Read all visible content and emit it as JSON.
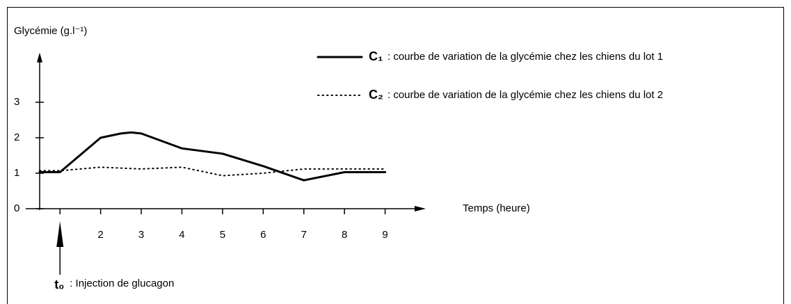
{
  "chart_data": {
    "type": "line",
    "ylabel": "Glycémie (g.l⁻¹)",
    "xlabel": "Temps (heure)",
    "xlim": [
      0.5,
      10
    ],
    "ylim": [
      0,
      4.4
    ],
    "xticks": [
      2,
      3,
      4,
      5,
      6,
      7,
      8,
      9
    ],
    "yticks": [
      0,
      1,
      2,
      3
    ],
    "series": [
      {
        "name": "C₁",
        "description": ": courbe de variation de la glycémie chez les chiens du lot 1",
        "color": "#000000",
        "style": "solid",
        "x": [
          0.5,
          1,
          2,
          2.5,
          2.75,
          3,
          4,
          5,
          6,
          7,
          8,
          9
        ],
        "values": [
          1.03,
          1.03,
          2.0,
          2.12,
          2.15,
          2.12,
          1.7,
          1.55,
          1.2,
          0.8,
          1.03,
          1.03
        ]
      },
      {
        "name": "C₂",
        "description": ": courbe de variation de la glycémie chez les chiens du lot 2",
        "color": "#000000",
        "style": "dotted",
        "x": [
          0.5,
          1,
          2,
          3,
          4,
          5,
          6,
          7,
          8,
          9
        ],
        "values": [
          1.07,
          1.07,
          1.17,
          1.12,
          1.17,
          0.93,
          1.0,
          1.12,
          1.12,
          1.12
        ]
      }
    ],
    "annotation": {
      "x": 1,
      "label": "t₀",
      "text": ": Injection de glucagon"
    }
  }
}
